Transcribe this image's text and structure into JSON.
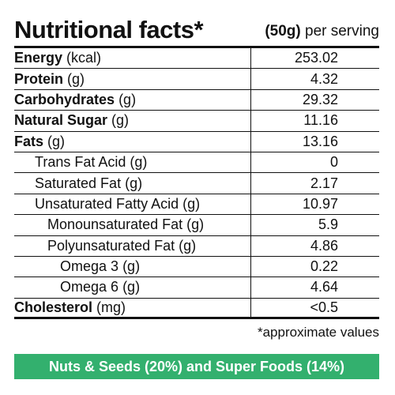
{
  "header": {
    "title": "Nutritional facts*",
    "serving_amount": "(50g)",
    "serving_text": "per serving"
  },
  "rows": [
    {
      "name": "Energy",
      "unit": "(kcal)",
      "value": "253.02",
      "level": 0,
      "bold": true
    },
    {
      "name": "Protein",
      "unit": "(g)",
      "value": "4.32",
      "level": 0,
      "bold": true
    },
    {
      "name": "Carbohydrates",
      "unit": "(g)",
      "value": "29.32",
      "level": 0,
      "bold": true
    },
    {
      "name": "Natural Sugar",
      "unit": "(g)",
      "value": "11.16",
      "level": 0,
      "bold": true
    },
    {
      "name": "Fats",
      "unit": "(g)",
      "value": "13.16",
      "level": 0,
      "bold": true
    },
    {
      "name": "Trans Fat Acid",
      "unit": "(g)",
      "value": "0",
      "level": 1,
      "bold": false
    },
    {
      "name": "Saturated Fat",
      "unit": "(g)",
      "value": "2.17",
      "level": 1,
      "bold": false
    },
    {
      "name": "Unsaturated Fatty Acid",
      "unit": "(g)",
      "value": "10.97",
      "level": 1,
      "bold": false
    },
    {
      "name": "Monounsaturated Fat",
      "unit": "(g)",
      "value": "5.9",
      "level": 2,
      "bold": false
    },
    {
      "name": "Polyunsaturated Fat",
      "unit": "(g)",
      "value": "4.86",
      "level": 2,
      "bold": false
    },
    {
      "name": "Omega 3",
      "unit": "(g)",
      "value": "0.22",
      "level": 3,
      "bold": false
    },
    {
      "name": "Omega 6",
      "unit": "(g)",
      "value": "4.64",
      "level": 3,
      "bold": false
    },
    {
      "name": "Cholesterol",
      "unit": "(mg)",
      "value": "<0.5",
      "level": 0,
      "bold": true
    }
  ],
  "footnote": "*approximate values",
  "banner": {
    "text": "Nuts & Seeds (20%) and Super Foods (14%)",
    "color": "#33b06e"
  }
}
